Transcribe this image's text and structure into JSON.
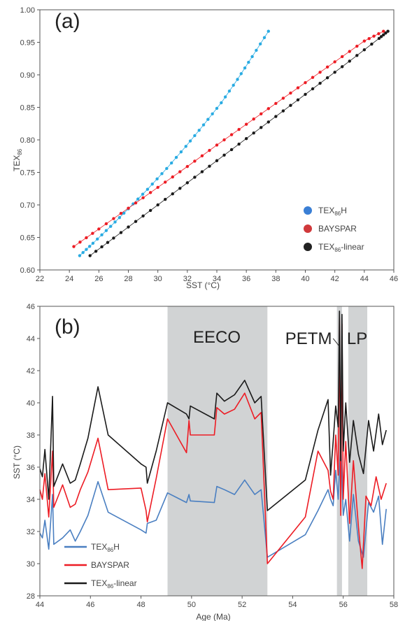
{
  "chart_data": [
    {
      "panel": "(a)",
      "type": "scatter",
      "xlabel": "SST (°C)",
      "ylabel": "TEX86",
      "xlim": [
        22,
        46
      ],
      "ylim": [
        0.6,
        1.0
      ],
      "xticks": [
        "22",
        "24",
        "26",
        "28",
        "30",
        "32",
        "34",
        "36",
        "38",
        "40",
        "42",
        "44",
        "46"
      ],
      "yticks": [
        "0.60",
        "0.65",
        "0.70",
        "0.75",
        "0.80",
        "0.85",
        "0.90",
        "0.95",
        "1.00"
      ],
      "legend_position": "bottom-right",
      "series": [
        {
          "name": "TEX86H",
          "color": "#29abe2",
          "marker": "circle",
          "x": [
            24.7,
            25.6,
            26.8,
            28.0,
            29.3,
            30.6,
            31.9,
            33.1,
            34.3,
            35.4,
            36.4,
            37.5
          ],
          "y": [
            0.622,
            0.641,
            0.667,
            0.694,
            0.724,
            0.756,
            0.79,
            0.823,
            0.857,
            0.893,
            0.928,
            0.967
          ]
        },
        {
          "name": "BAYSPAR",
          "color": "#ed1c24",
          "marker": "circle",
          "x": [
            24.3,
            26.0,
            28.0,
            30.0,
            32.0,
            34.0,
            36.0,
            38.0,
            40.0,
            42.0,
            44.0,
            45.3
          ],
          "y": [
            0.636,
            0.663,
            0.695,
            0.727,
            0.759,
            0.792,
            0.824,
            0.856,
            0.888,
            0.92,
            0.952,
            0.967
          ]
        },
        {
          "name": "TEX86-linear",
          "color": "#1a1a1a",
          "marker": "circle",
          "x": [
            25.4,
            27.0,
            29.0,
            31.0,
            33.0,
            35.0,
            37.0,
            39.0,
            41.0,
            43.0,
            45.0,
            45.6
          ],
          "y": [
            0.622,
            0.649,
            0.683,
            0.717,
            0.751,
            0.785,
            0.819,
            0.853,
            0.887,
            0.921,
            0.956,
            0.967
          ]
        }
      ]
    },
    {
      "panel": "(b)",
      "type": "line",
      "xlabel": "Age (Ma)",
      "ylabel": "SST (°C)",
      "xlim": [
        44,
        58
      ],
      "ylim": [
        28,
        46
      ],
      "xticks": [
        "44",
        "46",
        "48",
        "50",
        "52",
        "54",
        "56",
        "58"
      ],
      "yticks": [
        "28",
        "30",
        "32",
        "34",
        "36",
        "38",
        "40",
        "42",
        "44",
        "46"
      ],
      "legend_position": "bottom-left",
      "shaded_regions": [
        {
          "label": "EECO",
          "x0": 49.05,
          "x1": 53.0
        },
        {
          "label": "PETM",
          "x0": 55.75,
          "x1": 55.95
        },
        {
          "label": "LP",
          "x0": 56.2,
          "x1": 56.95
        }
      ],
      "series": [
        {
          "name": "TEX86H",
          "color": "#4a7fc1",
          "x": [
            44.0,
            44.1,
            44.2,
            44.35,
            44.5,
            44.55,
            44.9,
            45.2,
            45.4,
            45.6,
            45.9,
            46.3,
            46.7,
            48.0,
            48.2,
            48.25,
            48.6,
            49.05,
            49.8,
            49.9,
            49.95,
            50.9,
            51.0,
            51.3,
            51.7,
            52.1,
            52.5,
            52.75,
            53.0,
            54.5,
            55.0,
            55.4,
            55.5,
            55.6,
            55.7,
            55.8,
            55.9,
            56.0,
            56.1,
            56.25,
            56.4,
            56.6,
            56.8,
            57.0,
            57.2,
            57.4,
            57.55,
            57.7
          ],
          "y": [
            31.9,
            31.6,
            32.7,
            30.9,
            34.3,
            31.2,
            31.6,
            32.1,
            31.4,
            32.0,
            33.0,
            35.1,
            33.2,
            32.1,
            31.9,
            32.5,
            32.7,
            34.4,
            33.8,
            34.3,
            33.9,
            33.8,
            34.8,
            34.6,
            34.3,
            35.2,
            34.3,
            34.6,
            30.4,
            31.8,
            33.3,
            34.6,
            34.0,
            33.6,
            35.8,
            34.0,
            37.6,
            33.0,
            34.0,
            31.4,
            34.3,
            31.4,
            30.4,
            33.8,
            33.2,
            34.2,
            31.2,
            33.4
          ]
        },
        {
          "name": "BAYSPAR",
          "color": "#ed1c24",
          "x": [
            44.0,
            44.1,
            44.2,
            44.35,
            44.5,
            44.55,
            44.9,
            45.2,
            45.4,
            45.6,
            45.9,
            46.3,
            46.7,
            48.0,
            48.2,
            48.25,
            48.6,
            49.05,
            49.8,
            49.9,
            49.95,
            50.9,
            51.0,
            51.3,
            51.7,
            52.1,
            52.5,
            52.75,
            53.0,
            54.5,
            55.0,
            55.4,
            55.5,
            55.6,
            55.7,
            55.8,
            55.85,
            55.9,
            55.95,
            56.0,
            56.1,
            56.25,
            56.4,
            56.6,
            56.75,
            56.9,
            57.1,
            57.3,
            57.5,
            57.7
          ],
          "y": [
            34.6,
            34.0,
            35.6,
            32.9,
            37.0,
            33.5,
            34.9,
            33.5,
            33.7,
            34.6,
            35.7,
            37.8,
            34.6,
            34.7,
            33.3,
            32.6,
            35.3,
            39.0,
            36.9,
            38.9,
            38.0,
            38.0,
            39.7,
            39.3,
            39.6,
            40.6,
            39.0,
            39.4,
            30.0,
            32.9,
            37.0,
            35.8,
            34.5,
            34.0,
            38.0,
            35.5,
            45.3,
            33.0,
            44.9,
            34.0,
            37.6,
            32.5,
            36.4,
            32.3,
            29.7,
            34.2,
            33.6,
            35.4,
            34.0,
            35.0
          ]
        },
        {
          "name": "TEX86-linear",
          "color": "#1a1a1a",
          "x": [
            44.0,
            44.1,
            44.2,
            44.35,
            44.5,
            44.55,
            44.9,
            45.2,
            45.4,
            45.6,
            45.9,
            46.3,
            46.7,
            48.0,
            48.2,
            48.25,
            48.6,
            49.05,
            49.8,
            49.9,
            49.95,
            50.9,
            51.0,
            51.3,
            51.7,
            52.1,
            52.5,
            52.75,
            53.0,
            54.5,
            55.0,
            55.4,
            55.5,
            55.6,
            55.7,
            55.8,
            55.85,
            55.9,
            55.95,
            56.0,
            56.1,
            56.25,
            56.4,
            56.6,
            56.8,
            57.0,
            57.2,
            57.4,
            57.55,
            57.7
          ],
          "y": [
            35.9,
            35.4,
            37.1,
            34.0,
            40.4,
            34.8,
            36.2,
            35.0,
            35.2,
            36.2,
            37.8,
            41.0,
            38.0,
            36.2,
            36.0,
            35.0,
            37.0,
            40.0,
            39.3,
            39.0,
            39.8,
            39.0,
            40.6,
            40.1,
            40.5,
            41.4,
            40.0,
            40.4,
            33.3,
            35.2,
            38.3,
            40.2,
            35.5,
            37.6,
            39.8,
            38.5,
            45.7,
            36.4,
            45.5,
            37.0,
            40.0,
            36.3,
            38.9,
            36.8,
            35.6,
            38.9,
            37.0,
            39.3,
            37.4,
            38.3
          ]
        }
      ]
    }
  ]
}
